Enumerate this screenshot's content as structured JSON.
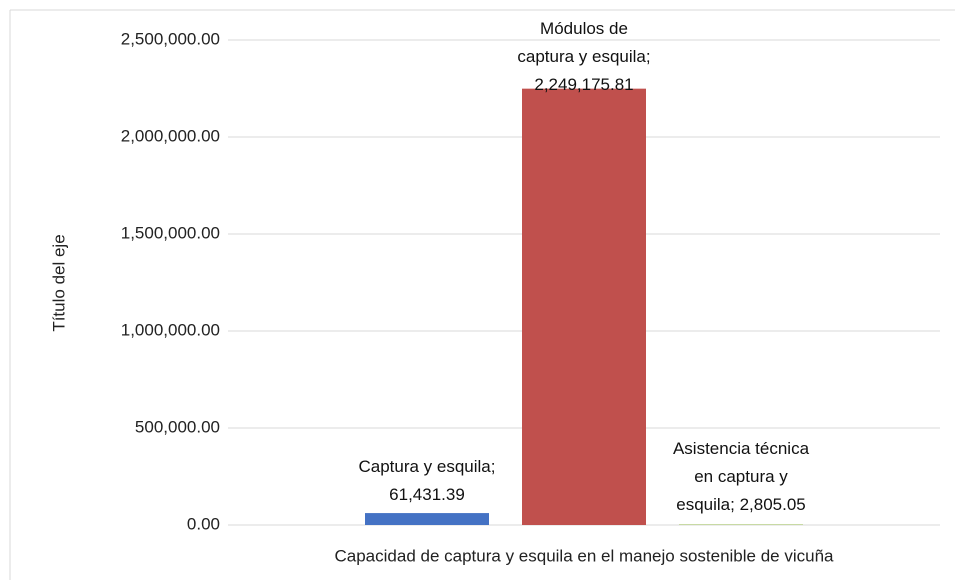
{
  "chart_data": {
    "type": "bar",
    "x_label": "Capacidad de captura y esquila en el manejo sostenible de vicuña",
    "y_label": "Título del eje",
    "categories": [
      "Capacidad de captura y esquila en el manejo sostenible de vicuña"
    ],
    "label_separator": "; ",
    "series": [
      {
        "name": "Captura y esquila",
        "color": "#4472c4",
        "values": [
          61431.39
        ],
        "value_labels": [
          "61,431.39"
        ]
      },
      {
        "name": "Módulos de captura y esquila",
        "color": "#c0504d",
        "values": [
          2249175.81
        ],
        "value_labels": [
          "2,249,175.81"
        ]
      },
      {
        "name": "Asistencia técnica en captura y esquila",
        "color": "#9bbb59",
        "values": [
          2805.05
        ],
        "value_labels": [
          "2,805.05"
        ]
      }
    ],
    "ylim": [
      0,
      2500000
    ],
    "yticks": [
      {
        "value": 0,
        "label": "0.00"
      },
      {
        "value": 500000,
        "label": "500,000.00"
      },
      {
        "value": 1000000,
        "label": "1,000,000.00"
      },
      {
        "value": 1500000,
        "label": "1,500,000.00"
      },
      {
        "value": 2000000,
        "label": "2,000,000.00"
      },
      {
        "value": 2500000,
        "label": "2,500,000.00"
      }
    ],
    "grid": true
  }
}
